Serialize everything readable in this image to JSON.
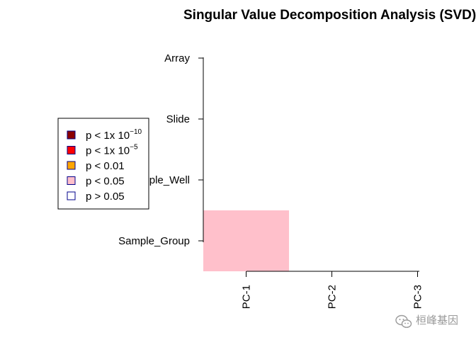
{
  "chart_data": {
    "type": "heatmap",
    "title": "Singular Value Decomposition Analysis (SVD)",
    "x_categories": [
      "PC-1",
      "PC-2",
      "PC-3"
    ],
    "y_categories": [
      "Sample_Group",
      "Sample_Well",
      "Slide",
      "Array"
    ],
    "cells": [
      {
        "y": "Sample_Group",
        "x": "PC-1",
        "level": "p < 0.05"
      },
      {
        "y": "Sample_Group",
        "x": "PC-2",
        "level": "p > 0.05"
      },
      {
        "y": "Sample_Group",
        "x": "PC-3",
        "level": "p > 0.05"
      },
      {
        "y": "Sample_Well",
        "x": "PC-1",
        "level": "p > 0.05"
      },
      {
        "y": "Sample_Well",
        "x": "PC-2",
        "level": "p > 0.05"
      },
      {
        "y": "Sample_Well",
        "x": "PC-3",
        "level": "p > 0.05"
      },
      {
        "y": "Slide",
        "x": "PC-1",
        "level": "p > 0.05"
      },
      {
        "y": "Slide",
        "x": "PC-2",
        "level": "p > 0.05"
      },
      {
        "y": "Slide",
        "x": "PC-3",
        "level": "p > 0.05"
      },
      {
        "y": "Array",
        "x": "PC-1",
        "level": "p > 0.05"
      },
      {
        "y": "Array",
        "x": "PC-2",
        "level": "p > 0.05"
      },
      {
        "y": "Array",
        "x": "PC-3",
        "level": "p > 0.05"
      }
    ],
    "legend": [
      {
        "label": "p < 1x 10",
        "sup": "−10",
        "fill": "#8b0000",
        "border": "#00008b"
      },
      {
        "label": "p < 1x 10",
        "sup": "−5",
        "fill": "#ff0000",
        "border": "#00008b"
      },
      {
        "label": "p < 0.01",
        "sup": "",
        "fill": "#ffa500",
        "border": "#00008b"
      },
      {
        "label": "p < 0.05",
        "sup": "",
        "fill": "#ffc0cb",
        "border": "#00008b"
      },
      {
        "label": "p > 0.05",
        "sup": "",
        "fill": "#ffffff",
        "border": "#00008b"
      }
    ],
    "legend_position": "left",
    "grid": false
  },
  "watermark": {
    "text": "桓峰基因",
    "icon": "wechat-icon"
  }
}
